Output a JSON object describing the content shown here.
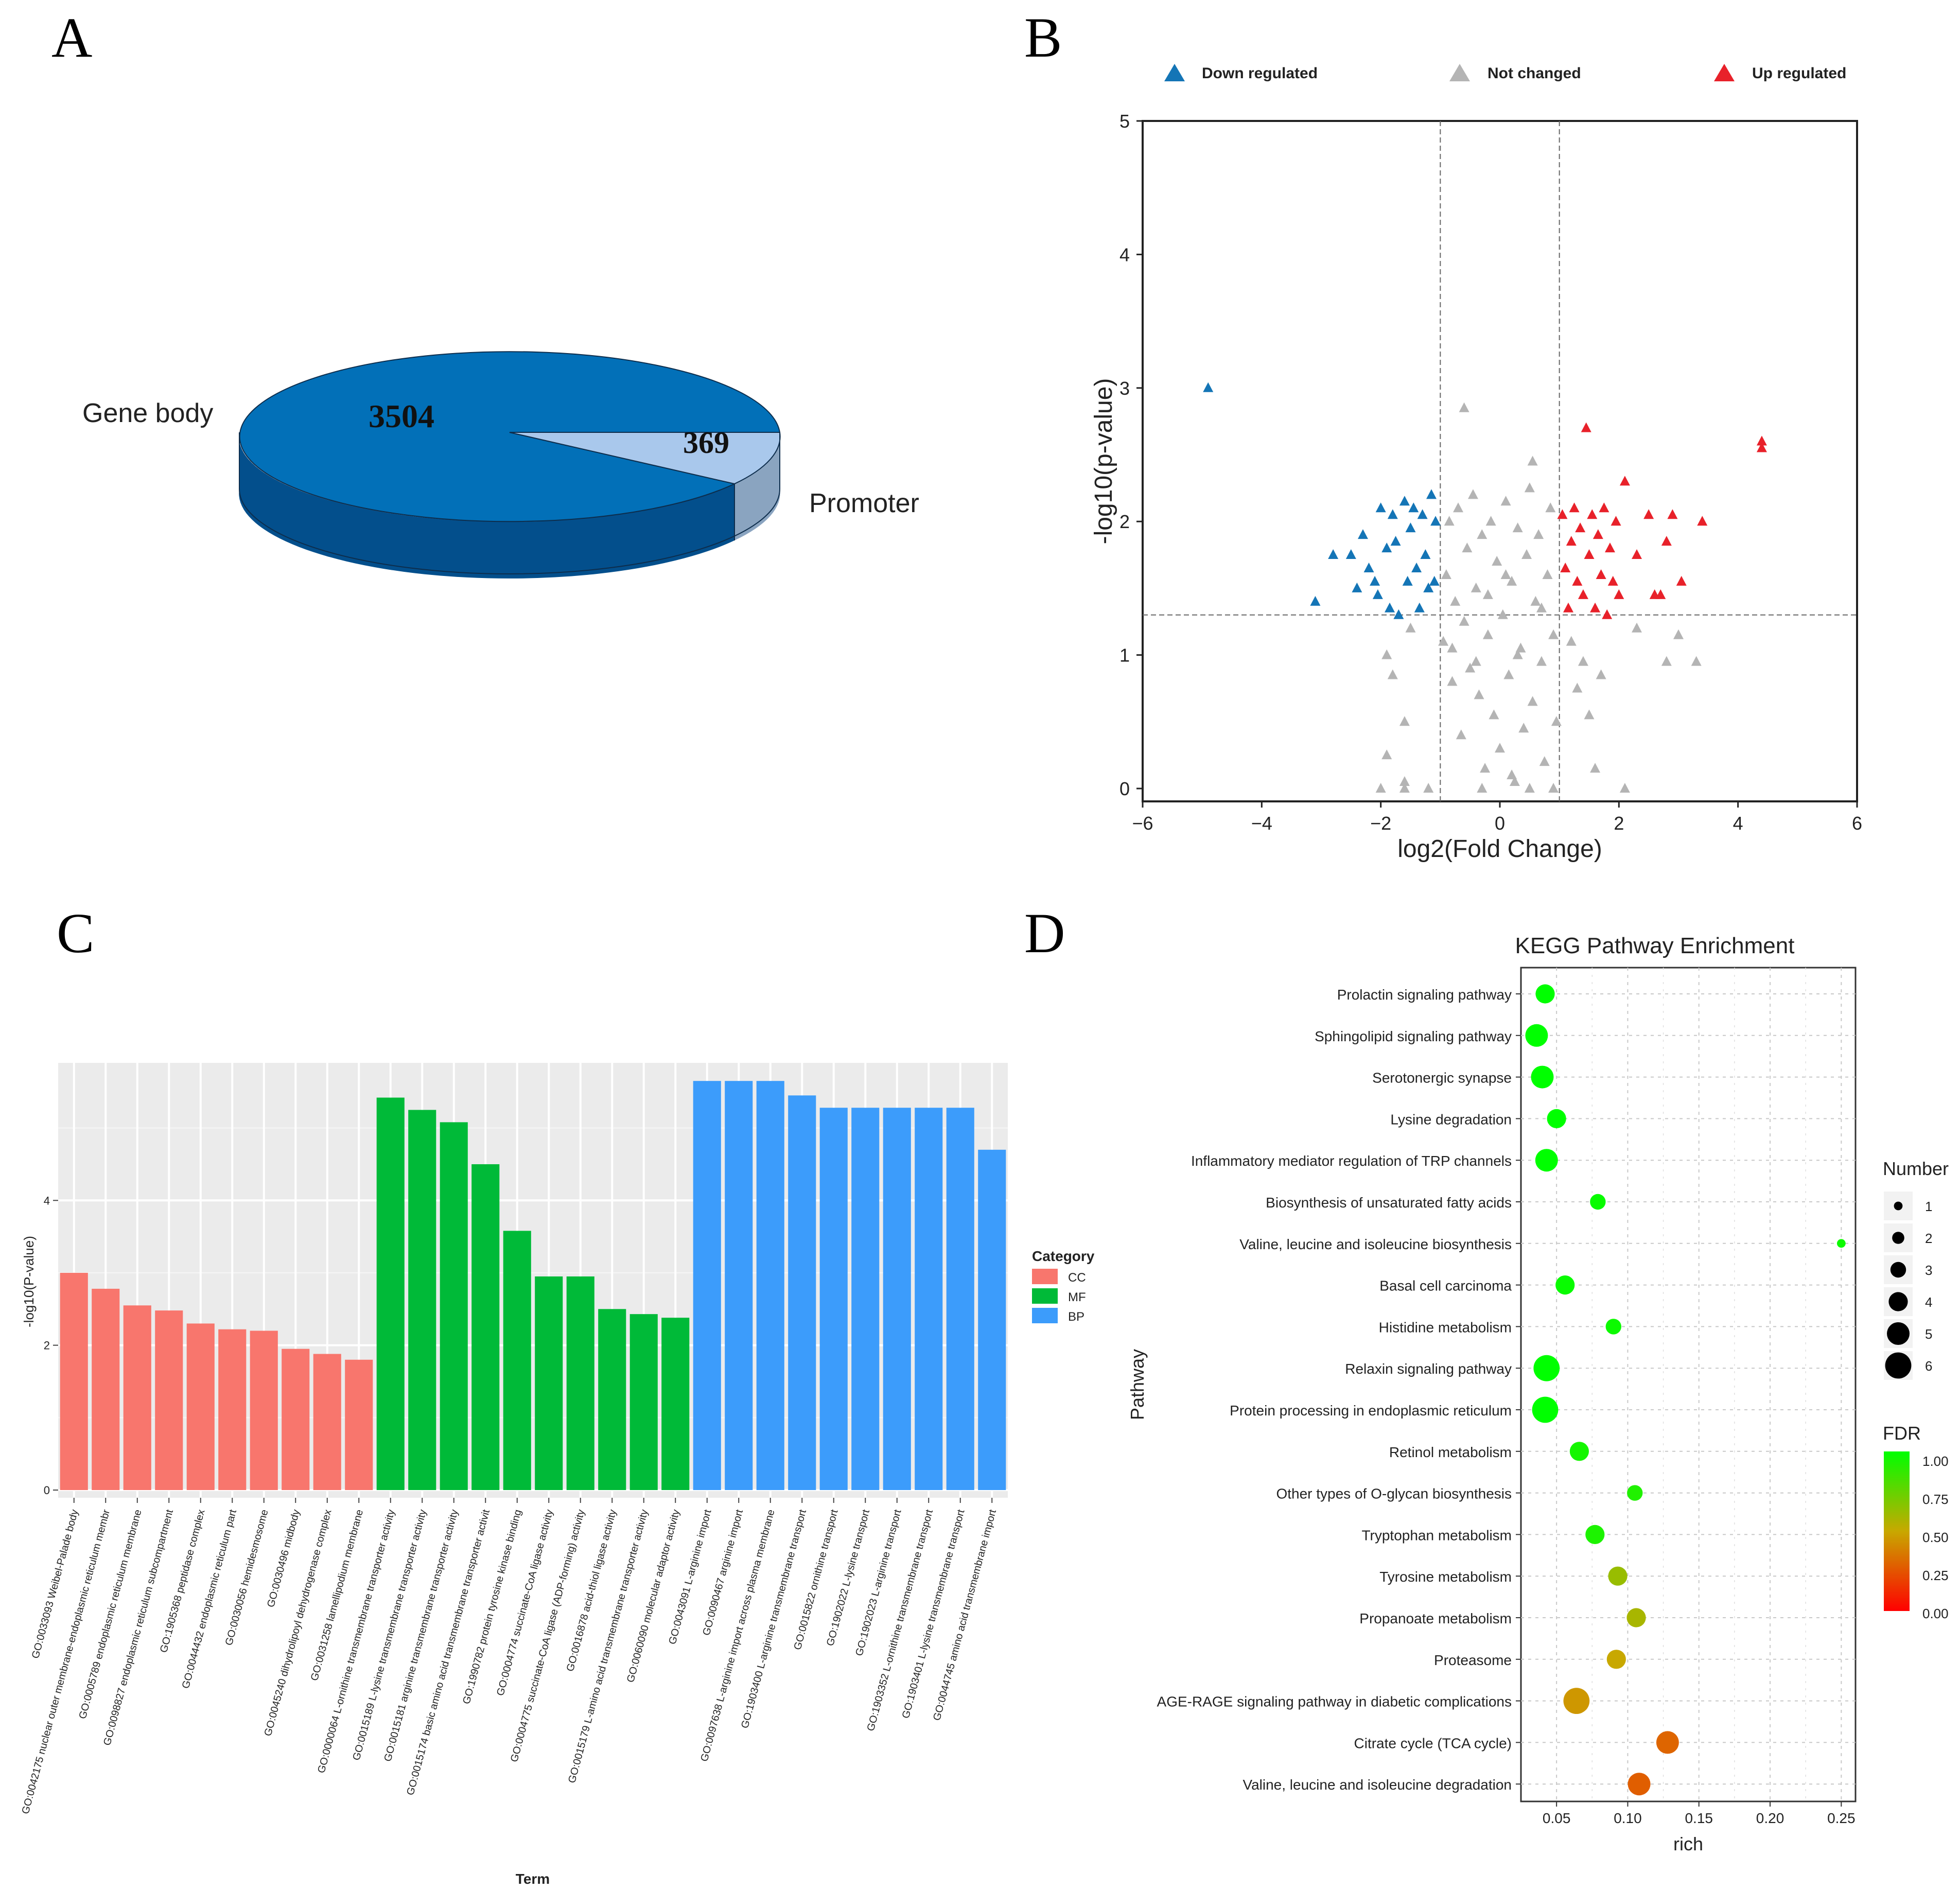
{
  "panels": {
    "a": "A",
    "b": "B",
    "c": "C",
    "d": "D"
  },
  "colors": {
    "pie_main": "#0270b8",
    "pie_main_dark": "#034f8c",
    "pie_small": "#a9c8ec",
    "pie_small_dark": "#8aa4c0",
    "down": "#1475b6",
    "not_changed": "#b4b4b4",
    "up": "#e8212a",
    "cc": "#f8766d",
    "mf": "#00ba38",
    "bp": "#3c9cfb",
    "panel_bg": "#ebebeb"
  },
  "chart_data": [
    {
      "type": "pie",
      "style": "3d",
      "slices": [
        {
          "label": "Gene body",
          "value": 3504,
          "value_label": "3504"
        },
        {
          "label": "Promoter",
          "value": 369,
          "value_label": "369"
        }
      ]
    },
    {
      "type": "scatter",
      "marker": "triangle",
      "xlabel": "log2(Fold Change)",
      "ylabel": "-log10(p-value)",
      "xlim": [
        -6,
        6
      ],
      "ylim": [
        0,
        5
      ],
      "xticks": [
        -6,
        -4,
        -2,
        0,
        2,
        4,
        6
      ],
      "yticks": [
        0,
        1,
        2,
        3,
        4,
        5
      ],
      "legend_position": "top",
      "thresholds": {
        "x": [
          -1,
          1
        ],
        "y": 1.3
      },
      "series": [
        {
          "name": "Down regulated",
          "points": [
            [
              -4.9,
              3.0
            ],
            [
              -3.1,
              1.4
            ],
            [
              -2.8,
              1.75
            ],
            [
              -2.5,
              1.75
            ],
            [
              -2.4,
              1.5
            ],
            [
              -2.3,
              1.9
            ],
            [
              -2.2,
              1.65
            ],
            [
              -2.1,
              1.55
            ],
            [
              -2.05,
              1.45
            ],
            [
              -2.0,
              2.1
            ],
            [
              -1.9,
              1.8
            ],
            [
              -1.85,
              1.35
            ],
            [
              -1.8,
              2.05
            ],
            [
              -1.75,
              1.85
            ],
            [
              -1.7,
              1.3
            ],
            [
              -1.6,
              2.15
            ],
            [
              -1.55,
              1.55
            ],
            [
              -1.5,
              1.95
            ],
            [
              -1.45,
              2.1
            ],
            [
              -1.4,
              1.65
            ],
            [
              -1.35,
              1.35
            ],
            [
              -1.3,
              2.05
            ],
            [
              -1.25,
              1.75
            ],
            [
              -1.2,
              1.5
            ],
            [
              -1.15,
              2.2
            ],
            [
              -1.1,
              1.55
            ],
            [
              -1.08,
              2.0
            ]
          ]
        },
        {
          "name": "Not changed",
          "points": [
            [
              -1.9,
              1.0
            ],
            [
              -1.8,
              0.85
            ],
            [
              -1.5,
              1.2
            ],
            [
              -1.6,
              0.5
            ],
            [
              -1.6,
              0.0
            ],
            [
              -2.0,
              0.0
            ],
            [
              -1.2,
              0.0
            ],
            [
              -1.9,
              0.25
            ],
            [
              -1.6,
              0.05
            ],
            [
              -0.95,
              1.1
            ],
            [
              -0.9,
              1.6
            ],
            [
              -0.85,
              2.0
            ],
            [
              -0.8,
              0.8
            ],
            [
              -0.75,
              1.4
            ],
            [
              -0.7,
              2.1
            ],
            [
              -0.65,
              0.4
            ],
            [
              -0.6,
              1.25
            ],
            [
              -0.55,
              1.8
            ],
            [
              -0.5,
              0.9
            ],
            [
              -0.45,
              2.2
            ],
            [
              -0.4,
              1.5
            ],
            [
              -0.35,
              0.7
            ],
            [
              -0.3,
              1.9
            ],
            [
              -0.25,
              0.15
            ],
            [
              -0.2,
              1.15
            ],
            [
              -0.15,
              2.0
            ],
            [
              -0.1,
              0.55
            ],
            [
              -0.05,
              1.7
            ],
            [
              0.0,
              0.3
            ],
            [
              0.05,
              1.3
            ],
            [
              0.1,
              2.15
            ],
            [
              0.15,
              0.85
            ],
            [
              0.2,
              1.55
            ],
            [
              0.25,
              0.05
            ],
            [
              0.3,
              1.95
            ],
            [
              0.35,
              1.05
            ],
            [
              0.4,
              0.45
            ],
            [
              0.45,
              1.75
            ],
            [
              0.5,
              2.25
            ],
            [
              0.55,
              0.65
            ],
            [
              0.6,
              1.4
            ],
            [
              0.65,
              1.9
            ],
            [
              0.7,
              0.95
            ],
            [
              0.75,
              0.2
            ],
            [
              0.8,
              1.6
            ],
            [
              0.85,
              2.1
            ],
            [
              0.9,
              1.15
            ],
            [
              0.95,
              0.5
            ],
            [
              0.2,
              0.1
            ],
            [
              0.5,
              0.0
            ],
            [
              -0.3,
              0.0
            ],
            [
              0.9,
              0.0
            ],
            [
              -0.6,
              2.85
            ],
            [
              0.55,
              2.45
            ],
            [
              1.2,
              1.1
            ],
            [
              1.3,
              0.75
            ],
            [
              1.4,
              0.95
            ],
            [
              1.5,
              0.55
            ],
            [
              1.6,
              0.15
            ],
            [
              1.7,
              0.85
            ],
            [
              2.1,
              0.0
            ],
            [
              2.3,
              1.2
            ],
            [
              2.8,
              0.95
            ],
            [
              3.0,
              1.15
            ],
            [
              3.3,
              0.95
            ],
            [
              -0.8,
              1.05
            ],
            [
              -0.4,
              0.95
            ],
            [
              0.3,
              1.0
            ],
            [
              0.7,
              1.35
            ],
            [
              -0.2,
              1.45
            ],
            [
              0.1,
              1.6
            ]
          ]
        },
        {
          "name": "Up regulated",
          "points": [
            [
              1.05,
              2.05
            ],
            [
              1.1,
              1.65
            ],
            [
              1.15,
              1.35
            ],
            [
              1.2,
              1.85
            ],
            [
              1.25,
              2.1
            ],
            [
              1.3,
              1.55
            ],
            [
              1.35,
              1.95
            ],
            [
              1.4,
              1.45
            ],
            [
              1.45,
              2.7
            ],
            [
              1.5,
              1.75
            ],
            [
              1.55,
              2.05
            ],
            [
              1.6,
              1.35
            ],
            [
              1.65,
              1.9
            ],
            [
              1.7,
              1.6
            ],
            [
              1.75,
              2.1
            ],
            [
              1.8,
              1.3
            ],
            [
              1.85,
              1.8
            ],
            [
              1.9,
              1.55
            ],
            [
              1.95,
              2.0
            ],
            [
              2.0,
              1.45
            ],
            [
              2.1,
              2.3
            ],
            [
              2.3,
              1.75
            ],
            [
              2.5,
              2.05
            ],
            [
              2.6,
              1.45
            ],
            [
              2.7,
              1.45
            ],
            [
              2.8,
              1.85
            ],
            [
              2.9,
              2.05
            ],
            [
              3.05,
              1.55
            ],
            [
              3.4,
              2.0
            ],
            [
              4.4,
              2.6
            ],
            [
              4.4,
              2.55
            ]
          ]
        }
      ]
    },
    {
      "type": "bar",
      "xlabel": "Term",
      "ylabel": "-log10(P-value)",
      "ylim": [
        0,
        5.9
      ],
      "yticks": [
        0,
        2,
        4
      ],
      "legend_title": "Category",
      "categories": [
        "GO:0033093 Weibel-Palade body",
        "GO:0042175 nuclear outer membrane-endoplasmic reticulum membr",
        "GO:0005789 endoplasmic reticulum membrane",
        "GO:0098827 endoplasmic reticulum subcompartment",
        "GO:1905368 peptidase complex",
        "GO:0044432 endoplasmic reticulum part",
        "GO:0030056 hemidesmosome",
        "GO:0030496 midbody",
        "GO:0045240 dihydrolipoyl dehydrogenase complex",
        "GO:0031258 lamellipodium membrane",
        "GO:0000064 L-ornithine transmembrane transporter activity",
        "GO:0015189 L-lysine transmembrane transporter activity",
        "GO:0015181 arginine transmembrane transporter activity",
        "GO:0015174 basic amino acid transmembrane transporter activit",
        "GO:1990782 protein tyrosine kinase binding",
        "GO:0004774 succinate-CoA ligase activity",
        "GO:0004775 succinate-CoA ligase (ADP-forming) activity",
        "GO:0016878 acid-thiol ligase activity",
        "GO:0015179 L-amino acid transmembrane transporter activity",
        "GO:0060090 molecular adaptor activity",
        "GO:0043091 L-arginine import",
        "GO:0090467 arginine import",
        "GO:0097638 L-arginine import across plasma membrane",
        "GO:1903400 L-arginine transmembrane transport",
        "GO:0015822 ornithine transport",
        "GO:1902022 L-lysine transport",
        "GO:1902023 L-arginine transport",
        "GO:1903352 L-ornithine transmembrane transport",
        "GO:1903401 L-lysine transmembrane transport",
        "GO:0044745 amino acid transmembrane import"
      ],
      "series": [
        {
          "name": "CC",
          "values": [
            3.0,
            2.78,
            2.55,
            2.48,
            2.3,
            2.22,
            2.2,
            1.95,
            1.88,
            1.8,
            null,
            null,
            null,
            null,
            null,
            null,
            null,
            null,
            null,
            null,
            null,
            null,
            null,
            null,
            null,
            null,
            null,
            null,
            null,
            null
          ]
        },
        {
          "name": "MF",
          "values": [
            null,
            null,
            null,
            null,
            null,
            null,
            null,
            null,
            null,
            null,
            5.42,
            5.25,
            5.08,
            4.5,
            3.58,
            2.95,
            2.95,
            2.5,
            2.43,
            2.38,
            null,
            null,
            null,
            null,
            null,
            null,
            null,
            null,
            null,
            null
          ]
        },
        {
          "name": "BP",
          "values": [
            null,
            null,
            null,
            null,
            null,
            null,
            null,
            null,
            null,
            null,
            null,
            null,
            null,
            null,
            null,
            null,
            null,
            null,
            null,
            null,
            5.65,
            5.65,
            5.65,
            5.45,
            5.28,
            5.28,
            5.28,
            5.28,
            5.28,
            4.7
          ]
        }
      ]
    },
    {
      "type": "scatter",
      "title": "KEGG Pathway Enrichment",
      "xlabel": "rich",
      "ylabel": "Pathway",
      "xlim": [
        0.025,
        0.26
      ],
      "xticks": [
        0.05,
        0.1,
        0.15,
        0.2,
        0.25
      ],
      "xtick_labels": [
        "0.05",
        "0.10",
        "0.15",
        "0.20",
        "0.25"
      ],
      "size_legend_title": "Number",
      "size_legend": [
        "1",
        "2",
        "3",
        "4",
        "5",
        "6"
      ],
      "color_legend_title": "FDR",
      "color_legend": [
        "1.00",
        "0.75",
        "0.50",
        "0.25",
        "0.00"
      ],
      "pathways": [
        "Prolactin signaling pathway",
        "Sphingolipid signaling pathway",
        "Serotonergic synapse",
        "Lysine degradation",
        "Inflammatory mediator regulation of TRP channels",
        "Biosynthesis of unsaturated fatty acids",
        "Valine, leucine and isoleucine biosynthesis",
        "Basal cell carcinoma",
        "Histidine metabolism",
        "Relaxin signaling pathway",
        "Protein processing in endoplasmic reticulum",
        "Retinol metabolism",
        "Other types of O-glycan biosynthesis",
        "Tryptophan metabolism",
        "Tyrosine metabolism",
        "Propanoate metabolism",
        "Proteasome",
        "AGE-RAGE signaling pathway in diabetic complications",
        "Citrate cycle (TCA cycle)",
        "Valine, leucine and isoleucine degradation"
      ],
      "points": [
        {
          "rich": 0.042,
          "number": 4,
          "fdr": 1.0
        },
        {
          "rich": 0.036,
          "number": 5,
          "fdr": 1.0
        },
        {
          "rich": 0.04,
          "number": 5,
          "fdr": 1.0
        },
        {
          "rich": 0.05,
          "number": 4,
          "fdr": 1.0
        },
        {
          "rich": 0.043,
          "number": 5,
          "fdr": 1.0
        },
        {
          "rich": 0.079,
          "number": 3,
          "fdr": 0.98
        },
        {
          "rich": 0.25,
          "number": 1,
          "fdr": 0.97
        },
        {
          "rich": 0.056,
          "number": 4,
          "fdr": 0.98
        },
        {
          "rich": 0.09,
          "number": 3,
          "fdr": 0.97
        },
        {
          "rich": 0.043,
          "number": 6,
          "fdr": 1.0
        },
        {
          "rich": 0.042,
          "number": 6,
          "fdr": 1.0
        },
        {
          "rich": 0.066,
          "number": 4,
          "fdr": 0.95
        },
        {
          "rich": 0.105,
          "number": 3,
          "fdr": 0.92
        },
        {
          "rich": 0.077,
          "number": 4,
          "fdr": 0.93
        },
        {
          "rich": 0.093,
          "number": 4,
          "fdr": 0.62
        },
        {
          "rich": 0.106,
          "number": 4,
          "fdr": 0.58
        },
        {
          "rich": 0.092,
          "number": 4,
          "fdr": 0.5
        },
        {
          "rich": 0.064,
          "number": 6,
          "fdr": 0.45
        },
        {
          "rich": 0.128,
          "number": 5,
          "fdr": 0.3
        },
        {
          "rich": 0.108,
          "number": 5,
          "fdr": 0.28
        }
      ]
    }
  ]
}
